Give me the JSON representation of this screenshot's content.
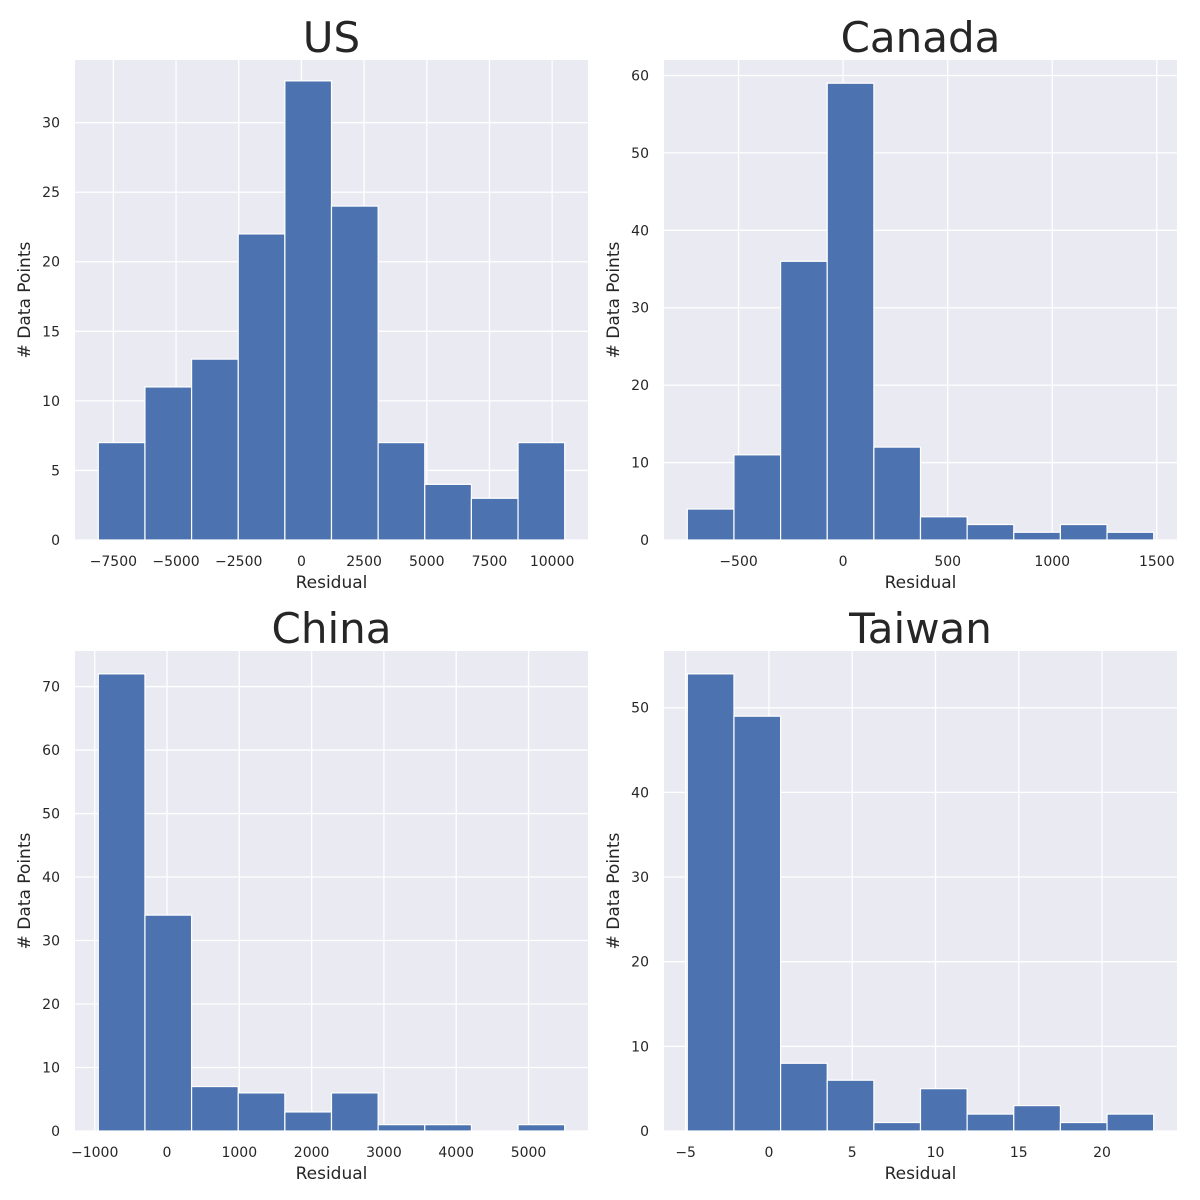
{
  "chart_data": [
    {
      "type": "bar",
      "title": "US",
      "xlabel": "Residual",
      "ylabel": "# Data Points",
      "bin_edges": [
        -8100,
        -6240,
        -4380,
        -2520,
        -660,
        1200,
        3060,
        4920,
        6780,
        8640,
        10500
      ],
      "values": [
        7,
        11,
        13,
        22,
        33,
        24,
        7,
        4,
        3,
        7
      ],
      "xlim": [
        -9030,
        11430
      ],
      "ylim": [
        0,
        34.5
      ],
      "xticks": [
        -7500,
        -5000,
        -2500,
        0,
        2500,
        5000,
        7500,
        10000
      ],
      "xtick_labels": [
        "−7500",
        "−5000",
        "−2500",
        "0",
        "2500",
        "5000",
        "7500",
        "10000"
      ],
      "yticks": [
        0,
        5,
        10,
        15,
        20,
        25,
        30
      ],
      "ytick_labels": [
        "0",
        "5",
        "10",
        "15",
        "20",
        "25",
        "30"
      ],
      "grid": true,
      "color": "#4c72b0"
    },
    {
      "type": "bar",
      "title": "Canada",
      "xlabel": "Residual",
      "ylabel": "# Data Points",
      "bin_edges": [
        -745,
        -522,
        -299,
        -76,
        147,
        370,
        593,
        816,
        1039,
        1262,
        1485
      ],
      "values": [
        4,
        11,
        36,
        59,
        12,
        3,
        2,
        1,
        2,
        1
      ],
      "xlim": [
        -856.5,
        1596.5
      ],
      "ylim": [
        0,
        62
      ],
      "xticks": [
        -500,
        0,
        500,
        1000,
        1500
      ],
      "xtick_labels": [
        "−500",
        "0",
        "500",
        "1000",
        "1500"
      ],
      "yticks": [
        0,
        10,
        20,
        30,
        40,
        50,
        60
      ],
      "ytick_labels": [
        "0",
        "10",
        "20",
        "30",
        "40",
        "50",
        "60"
      ],
      "grid": true,
      "color": "#4c72b0"
    },
    {
      "type": "bar",
      "title": "China",
      "xlabel": "Residual",
      "ylabel": "# Data Points",
      "bin_edges": [
        -950,
        -305,
        340,
        985,
        1630,
        2275,
        2920,
        3565,
        4210,
        4855,
        5500
      ],
      "values": [
        72,
        34,
        7,
        6,
        3,
        6,
        1,
        1,
        0,
        1
      ],
      "xlim": [
        -1272.5,
        5822.5
      ],
      "ylim": [
        0,
        75.6
      ],
      "xticks": [
        -1000,
        0,
        1000,
        2000,
        3000,
        4000,
        5000
      ],
      "xtick_labels": [
        "−1000",
        "0",
        "1000",
        "2000",
        "3000",
        "4000",
        "5000"
      ],
      "yticks": [
        0,
        10,
        20,
        30,
        40,
        50,
        60,
        70
      ],
      "ytick_labels": [
        "0",
        "10",
        "20",
        "30",
        "40",
        "50",
        "60",
        "70"
      ],
      "grid": true,
      "color": "#4c72b0"
    },
    {
      "type": "bar",
      "title": "Taiwan",
      "xlabel": "Residual",
      "ylabel": "# Data Points",
      "bin_edges": [
        -4.9,
        -2.1,
        0.7,
        3.5,
        6.3,
        9.1,
        11.9,
        14.7,
        17.5,
        20.3,
        23.1
      ],
      "values": [
        54,
        49,
        8,
        6,
        1,
        5,
        2,
        3,
        1,
        2
      ],
      "xlim": [
        -6.3,
        24.5
      ],
      "ylim": [
        0,
        56.7
      ],
      "xticks": [
        -5,
        0,
        5,
        10,
        15,
        20
      ],
      "xtick_labels": [
        "−5",
        "0",
        "5",
        "10",
        "15",
        "20"
      ],
      "yticks": [
        0,
        10,
        20,
        30,
        40,
        50
      ],
      "ytick_labels": [
        "0",
        "10",
        "20",
        "30",
        "40",
        "50"
      ],
      "grid": true,
      "color": "#4c72b0"
    }
  ]
}
